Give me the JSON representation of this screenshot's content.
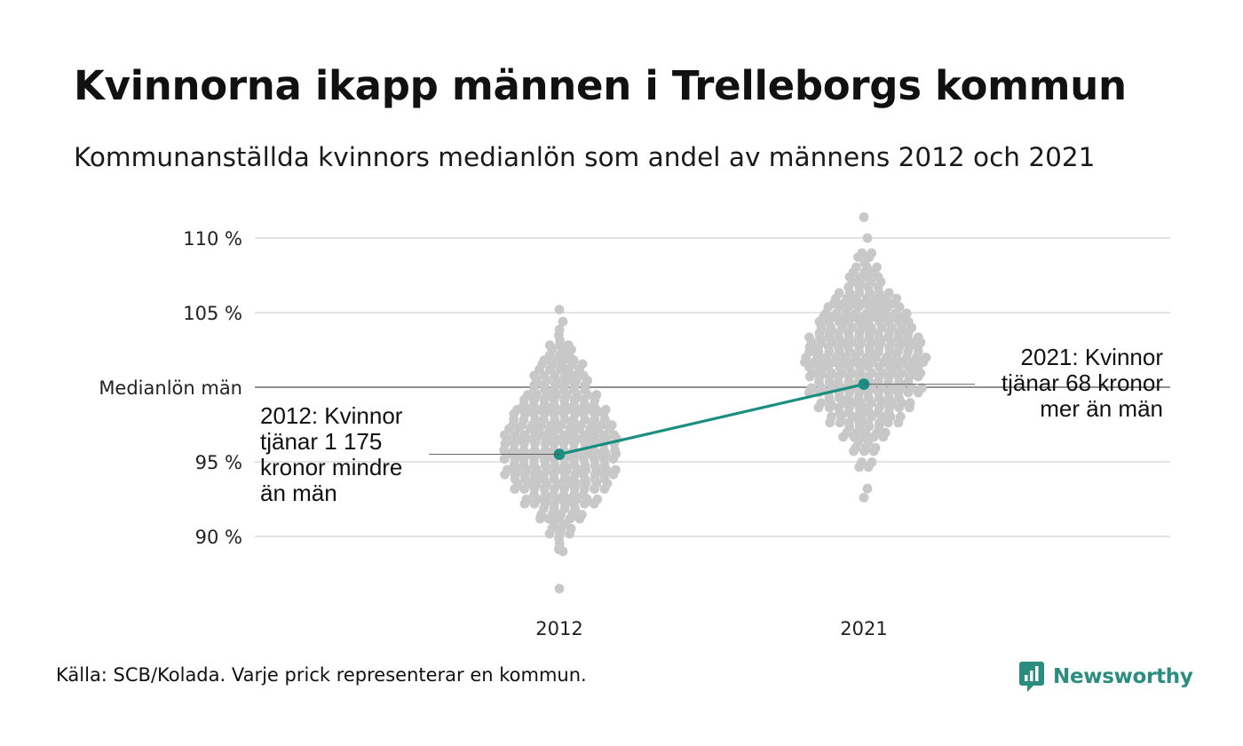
{
  "title": "Kvinnorna ikapp männen i Trelleborgs kommun",
  "subtitle": "Kommunanställda kvinnors medianlön som andel av männens 2012 och 2021",
  "footer": "Källa: SCB/Kolada. Varje prick representerar en kommun.",
  "brand": "Newsworthy",
  "colors": {
    "accent": "#1a8f80",
    "dots": "#c8c8c8",
    "grid": "#e3e3e3",
    "reference": "#222222"
  },
  "chart_data": {
    "type": "scatter",
    "subtype": "beeswarm-with-highlight-line",
    "title": "Kvinnorna ikapp männen i Trelleborgs kommun",
    "subtitle": "Kommunanställda kvinnors medianlön som andel av männens 2012 och 2021",
    "categories": [
      "2012",
      "2021"
    ],
    "ylim": [
      86,
      111
    ],
    "yticks": [
      {
        "value": 110,
        "label": "110 %"
      },
      {
        "value": 105,
        "label": "105 %"
      },
      {
        "value": 100,
        "label": "Medianlön män"
      },
      {
        "value": 95,
        "label": "95 %"
      },
      {
        "value": 90,
        "label": "90 %"
      }
    ],
    "reference_line": {
      "value": 100,
      "label": "Medianlön män"
    },
    "highlight": {
      "name": "Trelleborg",
      "values": [
        {
          "x": "2012",
          "y": 95.5
        },
        {
          "x": "2021",
          "y": 100.2
        }
      ]
    },
    "annotations": [
      {
        "x": "2012",
        "y": 95.5,
        "lines": [
          "2012: Kvinnor",
          "tjänar 1 175",
          "kronor mindre",
          "än män"
        ]
      },
      {
        "x": "2021",
        "y": 100.2,
        "lines": [
          "2021: Kvinnor",
          "tjänar 68 kronor",
          "mer än män"
        ]
      }
    ],
    "distribution": [
      {
        "category": "2012",
        "extremes": [
          105.2,
          104.4,
          86.5,
          89.0
        ],
        "bins": [
          {
            "y": 103.5,
            "count": 3
          },
          {
            "y": 102.5,
            "count": 9
          },
          {
            "y": 101.5,
            "count": 14
          },
          {
            "y": 100.5,
            "count": 18
          },
          {
            "y": 99.5,
            "count": 22
          },
          {
            "y": 98.5,
            "count": 28
          },
          {
            "y": 97.5,
            "count": 32
          },
          {
            "y": 96.5,
            "count": 36
          },
          {
            "y": 95.5,
            "count": 36
          },
          {
            "y": 94.5,
            "count": 34
          },
          {
            "y": 93.5,
            "count": 30
          },
          {
            "y": 92.5,
            "count": 22
          },
          {
            "y": 91.5,
            "count": 14
          },
          {
            "y": 90.5,
            "count": 8
          },
          {
            "y": 89.5,
            "count": 3
          }
        ]
      },
      {
        "category": "2021",
        "extremes": [
          111.4,
          110.0,
          92.6,
          93.2
        ],
        "bins": [
          {
            "y": 109,
            "count": 4
          },
          {
            "y": 108,
            "count": 7
          },
          {
            "y": 107,
            "count": 12
          },
          {
            "y": 106,
            "count": 20
          },
          {
            "y": 105,
            "count": 26
          },
          {
            "y": 104,
            "count": 30
          },
          {
            "y": 103,
            "count": 36
          },
          {
            "y": 102,
            "count": 38
          },
          {
            "y": 101,
            "count": 36
          },
          {
            "y": 100,
            "count": 34
          },
          {
            "y": 99,
            "count": 28
          },
          {
            "y": 98,
            "count": 22
          },
          {
            "y": 97,
            "count": 14
          },
          {
            "y": 96,
            "count": 8
          },
          {
            "y": 95,
            "count": 4
          }
        ]
      }
    ]
  }
}
